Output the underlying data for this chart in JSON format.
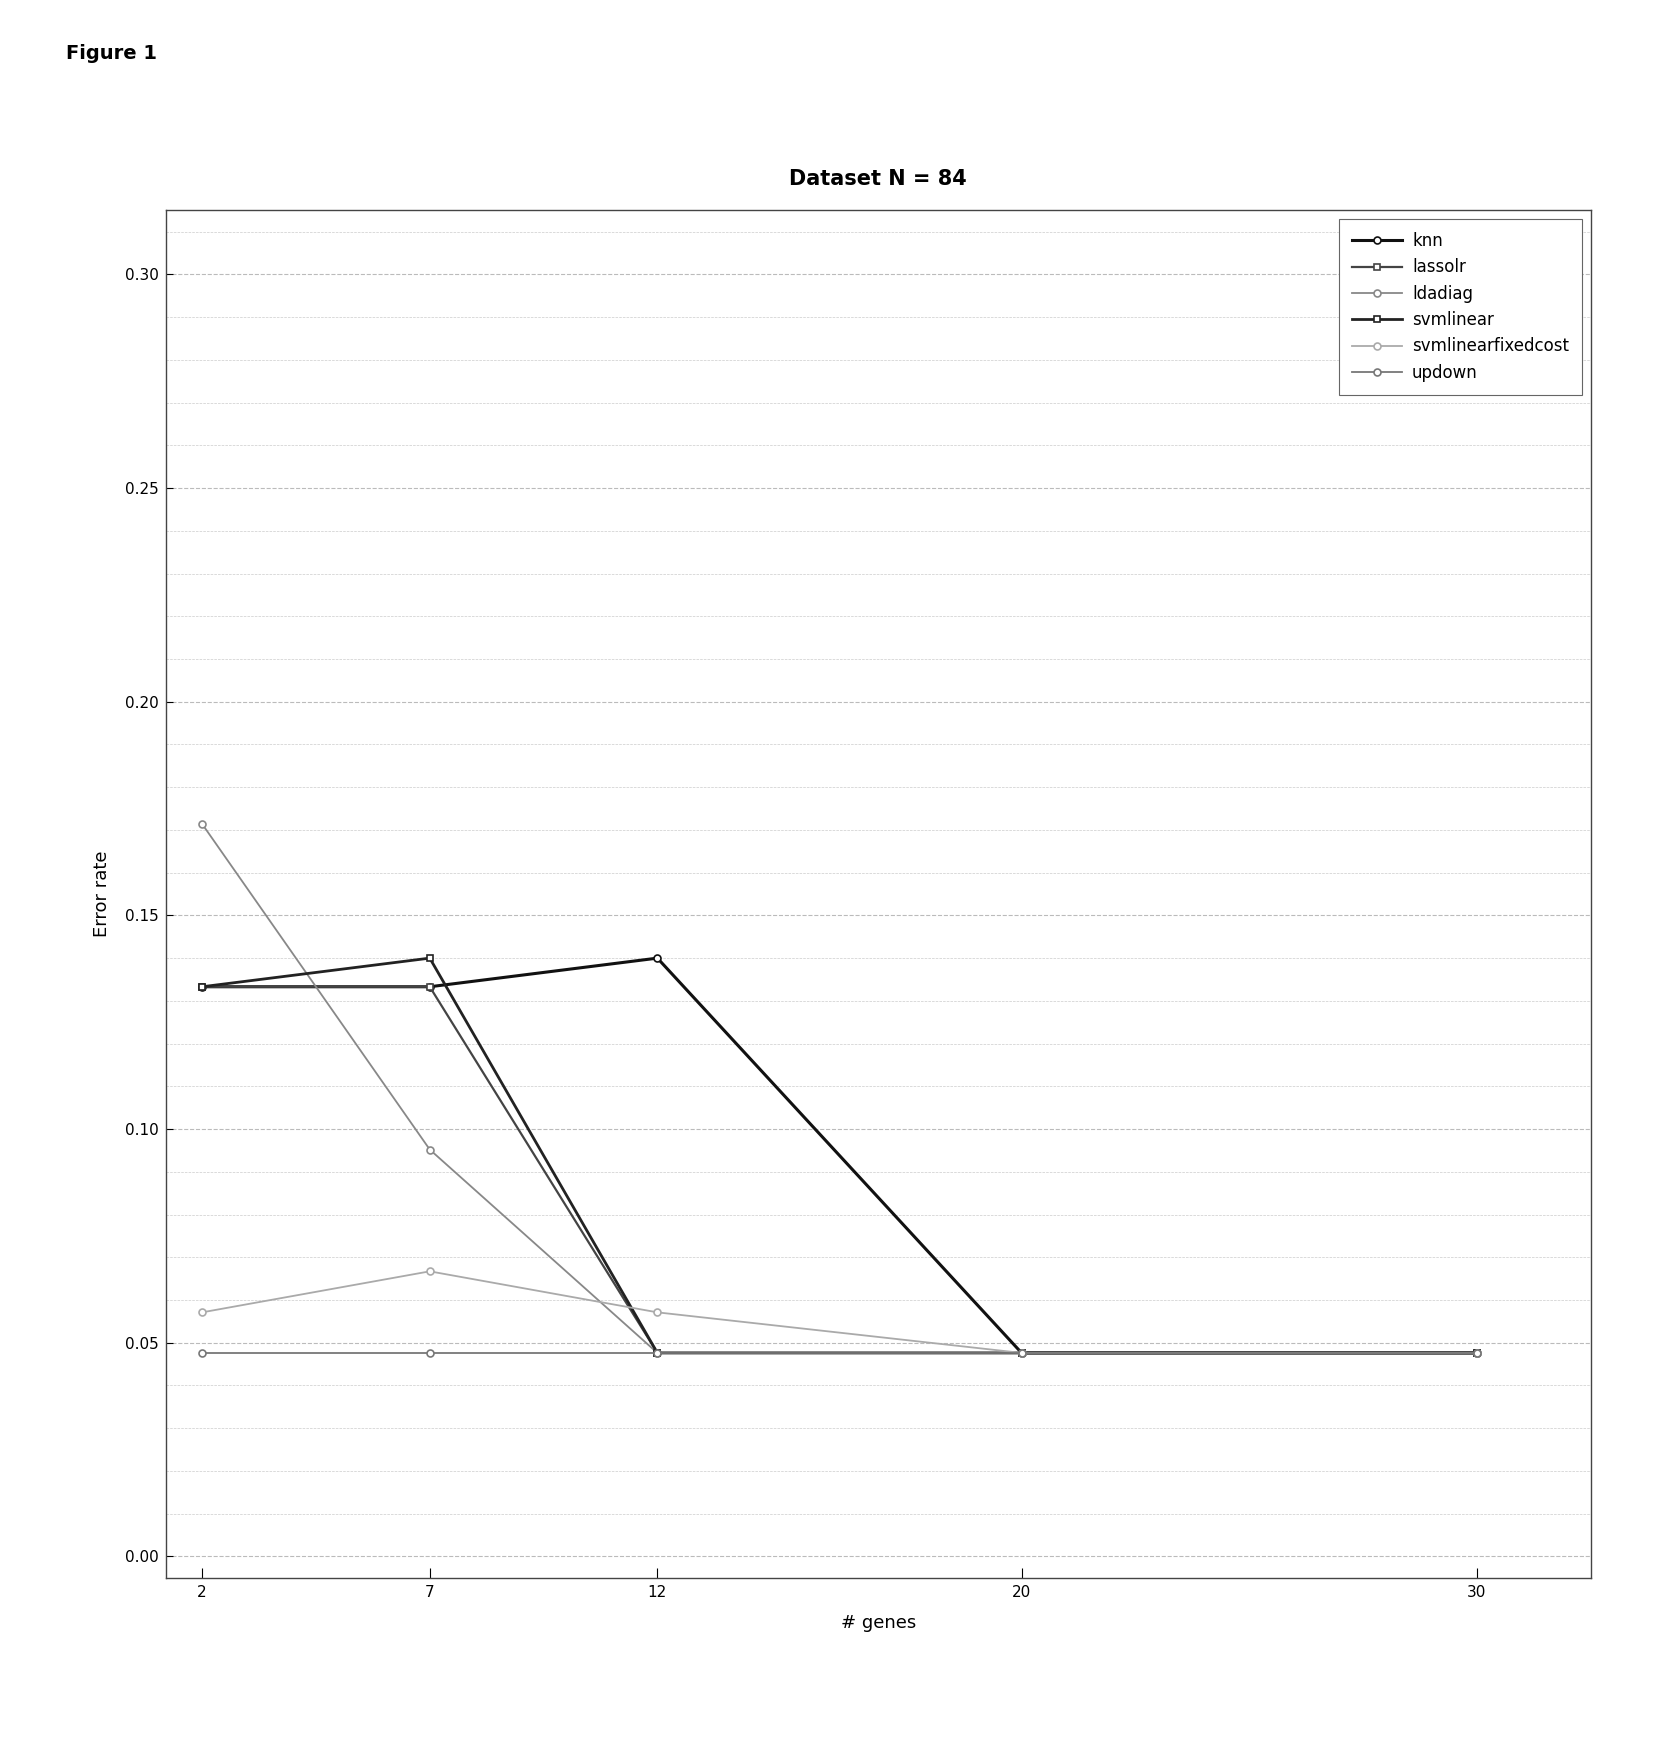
{
  "title": "Dataset N = 84",
  "xlabel": "# genes",
  "ylabel": "Error rate",
  "figure_label": "Figure 1",
  "x": [
    2,
    7,
    12,
    20,
    30
  ],
  "series": {
    "knn": [
      0.1333,
      0.1333,
      0.14,
      0.0476,
      0.0476
    ],
    "lassolr": [
      0.1333,
      0.1333,
      0.0476,
      0.0476,
      0.0476
    ],
    "ldadiag": [
      0.1714,
      0.0952,
      0.0476,
      0.0476,
      0.0476
    ],
    "svmlinear": [
      0.1333,
      0.14,
      0.0476,
      0.0476,
      0.0476
    ],
    "svmlinearfixedcost": [
      0.0571,
      0.0667,
      0.0571,
      0.0476,
      0.0476
    ],
    "updown": [
      0.0476,
      0.0476,
      0.0476,
      0.0476,
      0.0476
    ]
  },
  "series_styles": {
    "knn": {
      "color": "#111111",
      "lw": 2.2,
      "ls": "-",
      "marker": "o",
      "ms": 5,
      "mfc": "white"
    },
    "lassolr": {
      "color": "#444444",
      "lw": 1.6,
      "ls": "-",
      "marker": "s",
      "ms": 5,
      "mfc": "white"
    },
    "ldadiag": {
      "color": "#888888",
      "lw": 1.3,
      "ls": "-",
      "marker": "o",
      "ms": 5,
      "mfc": "white"
    },
    "svmlinear": {
      "color": "#222222",
      "lw": 2.0,
      "ls": "-",
      "marker": "s",
      "ms": 5,
      "mfc": "white"
    },
    "svmlinearfixedcost": {
      "color": "#aaaaaa",
      "lw": 1.3,
      "ls": "-",
      "marker": "o",
      "ms": 5,
      "mfc": "white"
    },
    "updown": {
      "color": "#777777",
      "lw": 1.3,
      "ls": "-",
      "marker": "o",
      "ms": 5,
      "mfc": "white"
    }
  },
  "ylim": [
    -0.005,
    0.315
  ],
  "yticks": [
    0.0,
    0.05,
    0.1,
    0.15,
    0.2,
    0.25,
    0.3
  ],
  "xlim": [
    1.2,
    32.5
  ],
  "xticks": [
    2,
    7,
    12,
    20,
    30
  ],
  "background_color": "#ffffff",
  "grid_major_color": "#bbbbbb",
  "grid_minor_color": "#cccccc",
  "title_fontsize": 15,
  "axis_label_fontsize": 13,
  "tick_fontsize": 11,
  "legend_fontsize": 12,
  "fig_label_fontsize": 14
}
